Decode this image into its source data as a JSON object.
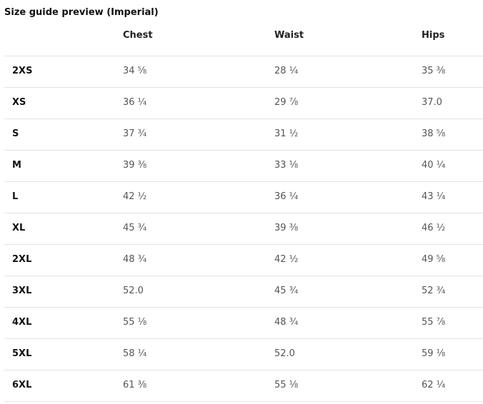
{
  "title": "Size guide preview (Imperial)",
  "table": {
    "columns": [
      "Chest",
      "Waist",
      "Hips"
    ],
    "rows": [
      [
        "2XS",
        "34 ⅝",
        "28 ¼",
        "35 ⅜"
      ],
      [
        "XS",
        "36 ¼",
        "29 ⅞",
        "37.0"
      ],
      [
        "S",
        "37 ¾",
        "31 ½",
        "38 ⅝"
      ],
      [
        "M",
        "39 ⅜",
        "33 ⅛",
        "40 ¼"
      ],
      [
        "L",
        "42 ½",
        "36 ¼",
        "43 ¼"
      ],
      [
        "XL",
        "45 ¾",
        "39 ⅜",
        "46 ½"
      ],
      [
        "2XL",
        "48 ¾",
        "42 ½",
        "49 ⅝"
      ],
      [
        "3XL",
        "52.0",
        "45 ¾",
        "52 ¾"
      ],
      [
        "4XL",
        "55 ⅛",
        "48 ¾",
        "55 ⅞"
      ],
      [
        "5XL",
        "58 ¼",
        "52.0",
        "59 ⅛"
      ],
      [
        "6XL",
        "61 ⅜",
        "55 ⅛",
        "62 ¼"
      ]
    ]
  }
}
